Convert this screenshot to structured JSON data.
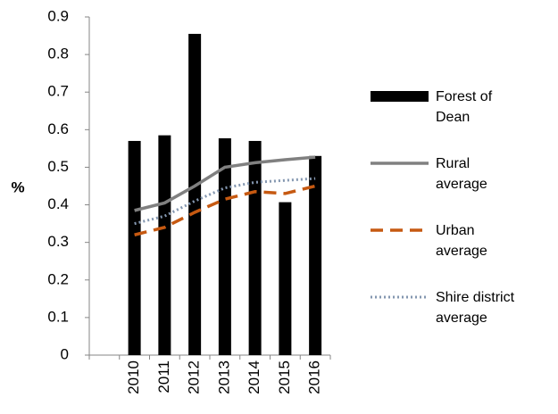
{
  "chart_data": {
    "type": "bar",
    "y_label": "%",
    "categories": [
      null,
      "2010",
      "2011",
      "2012",
      "2013",
      "2014",
      "2015",
      "2016"
    ],
    "ylim": [
      0,
      0.9
    ],
    "yticks": [
      0,
      0.1,
      0.2,
      0.3,
      0.4,
      0.5,
      0.6,
      0.7,
      0.8,
      0.9
    ],
    "grid": false,
    "legend": "right",
    "series": [
      {
        "name": "Forest of Dean",
        "type": "bar",
        "color": "#000000",
        "values": [
          null,
          0.57,
          0.585,
          0.855,
          0.577,
          0.57,
          0.407,
          0.53
        ]
      },
      {
        "name": "Rural average",
        "type": "line",
        "style": "solid",
        "color": "#808080",
        "values": [
          null,
          0.385,
          0.405,
          0.45,
          0.5,
          0.512,
          0.52,
          0.527
        ]
      },
      {
        "name": "Urban average",
        "type": "line",
        "style": "dashed",
        "color": "#c65911",
        "values": [
          null,
          0.32,
          0.34,
          0.38,
          0.415,
          0.435,
          0.43,
          0.45
        ]
      },
      {
        "name": "Shire district average",
        "type": "line",
        "style": "dotted",
        "color": "#8497b0",
        "values": [
          null,
          0.35,
          0.37,
          0.41,
          0.445,
          0.46,
          0.465,
          0.47
        ]
      }
    ]
  }
}
